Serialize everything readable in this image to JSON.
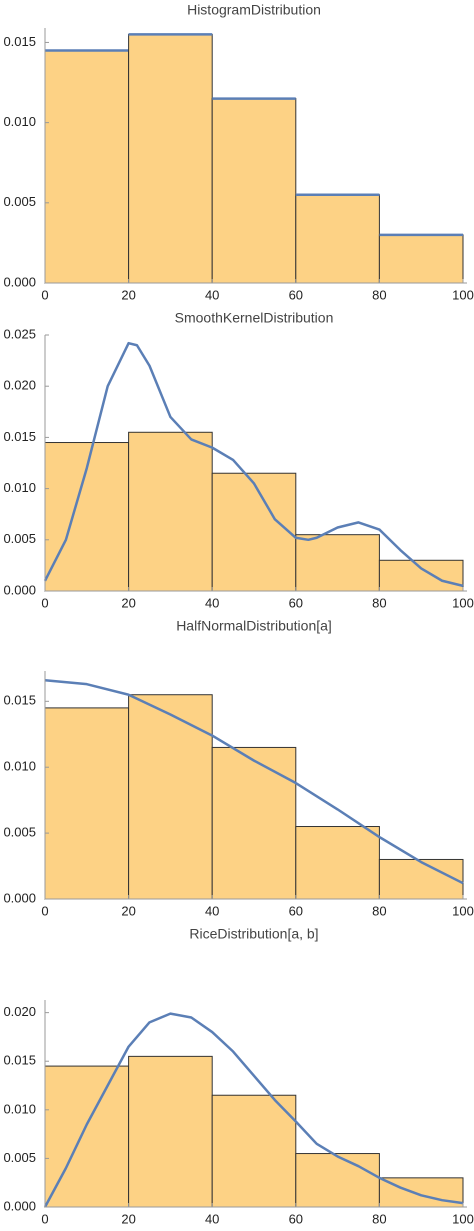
{
  "chart_data": [
    {
      "type": "histogram",
      "title": "HistogramDistribution",
      "bins": [
        0,
        20,
        40,
        60,
        80,
        100
      ],
      "counts": [
        0.0145,
        0.0155,
        0.0115,
        0.0055,
        0.003
      ],
      "color": "#fdd285",
      "edge_color": "#333333",
      "step_color": "#5b7fb6",
      "xlim": [
        0,
        100
      ],
      "xticks": [
        0,
        20,
        40,
        60,
        80,
        100
      ],
      "ylim": [
        0,
        0.0159
      ],
      "yticks": [
        {
          "value": 0,
          "label": "0.000"
        },
        {
          "value": 0.005,
          "label": "0.005"
        },
        {
          "value": 0.01,
          "label": "0.010"
        },
        {
          "value": 0.015,
          "label": "0.015"
        }
      ]
    },
    {
      "type": "histogram",
      "title": "SmoothKernelDistribution",
      "bins": [
        0,
        20,
        40,
        60,
        80,
        100
      ],
      "counts": [
        0.0145,
        0.0155,
        0.0115,
        0.0055,
        0.003
      ],
      "color": "#fdd285",
      "edge_color": "#333333",
      "series": [
        {
          "color": "#5b7fb6",
          "x": [
            0,
            5,
            10,
            15,
            20,
            22,
            25,
            30,
            35,
            40,
            45,
            50,
            55,
            60,
            63,
            65,
            70,
            75,
            80,
            85,
            90,
            95,
            100
          ],
          "values": [
            0.001,
            0.005,
            0.012,
            0.02,
            0.0242,
            0.024,
            0.022,
            0.017,
            0.0148,
            0.014,
            0.0128,
            0.0105,
            0.007,
            0.0052,
            0.005,
            0.0052,
            0.0062,
            0.0067,
            0.006,
            0.004,
            0.0022,
            0.001,
            0.0005
          ]
        }
      ],
      "xlim": [
        0,
        100
      ],
      "xticks": [
        0,
        20,
        40,
        60,
        80,
        100
      ],
      "ylim": [
        0,
        0.025
      ],
      "yticks": [
        {
          "value": 0,
          "label": "0.000"
        },
        {
          "value": 0.005,
          "label": "0.005"
        },
        {
          "value": 0.01,
          "label": "0.010"
        },
        {
          "value": 0.015,
          "label": "0.015"
        },
        {
          "value": 0.02,
          "label": "0.020"
        },
        {
          "value": 0.025,
          "label": "0.025"
        }
      ]
    },
    {
      "type": "histogram",
      "title": "HalfNormalDistribution[a]",
      "bins": [
        0,
        20,
        40,
        60,
        80,
        100
      ],
      "counts": [
        0.0145,
        0.0155,
        0.0115,
        0.0055,
        0.003
      ],
      "color": "#fdd285",
      "edge_color": "#333333",
      "series": [
        {
          "color": "#5b7fb6",
          "x": [
            0,
            10,
            20,
            30,
            40,
            50,
            60,
            70,
            80,
            90,
            100
          ],
          "values": [
            0.0166,
            0.0163,
            0.0155,
            0.014,
            0.0124,
            0.0105,
            0.0088,
            0.0068,
            0.0047,
            0.0028,
            0.0012
          ]
        }
      ],
      "xlim": [
        0,
        100
      ],
      "xticks": [
        0,
        20,
        40,
        60,
        80,
        100
      ],
      "ylim": [
        0,
        0.0173
      ],
      "yticks": [
        {
          "value": 0,
          "label": "0.000"
        },
        {
          "value": 0.005,
          "label": "0.005"
        },
        {
          "value": 0.01,
          "label": "0.010"
        },
        {
          "value": 0.015,
          "label": "0.015"
        }
      ]
    },
    {
      "type": "histogram",
      "title": "RiceDistribution[a, b]",
      "bins": [
        0,
        20,
        40,
        60,
        80,
        100
      ],
      "counts": [
        0.0145,
        0.0155,
        0.0115,
        0.0055,
        0.003
      ],
      "color": "#fdd285",
      "edge_color": "#333333",
      "series": [
        {
          "color": "#5b7fb6",
          "x": [
            0,
            5,
            10,
            15,
            20,
            25,
            30,
            35,
            40,
            45,
            50,
            55,
            60,
            65,
            70,
            75,
            80,
            85,
            90,
            95,
            100
          ],
          "values": [
            0,
            0.004,
            0.0085,
            0.0125,
            0.0165,
            0.019,
            0.0199,
            0.0195,
            0.018,
            0.016,
            0.0135,
            0.011,
            0.0088,
            0.0065,
            0.0052,
            0.0042,
            0.003,
            0.002,
            0.0012,
            0.0007,
            0.0004
          ]
        }
      ],
      "xlim": [
        0,
        100
      ],
      "xticks": [
        0,
        20,
        40,
        60,
        80,
        100
      ],
      "ylim": [
        0,
        0.0213
      ],
      "yticks": [
        {
          "value": 0,
          "label": "0.000"
        },
        {
          "value": 0.005,
          "label": "0.005"
        },
        {
          "value": 0.01,
          "label": "0.010"
        },
        {
          "value": 0.015,
          "label": "0.015"
        },
        {
          "value": 0.02,
          "label": "0.020"
        }
      ]
    }
  ]
}
